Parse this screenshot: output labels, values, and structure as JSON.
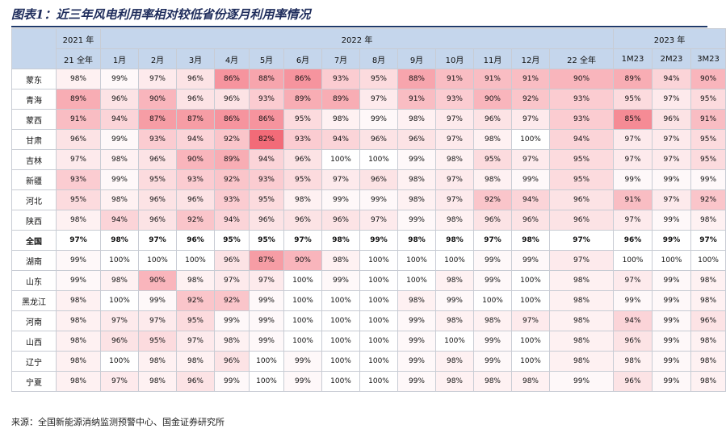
{
  "title": "图表1：近三年风电利用率相对较低省份逐月利用率情况",
  "header": {
    "years": [
      {
        "label": "2021 年",
        "span": 1
      },
      {
        "label": "2022 年",
        "span": 13
      },
      {
        "label": "2023 年",
        "span": 3
      }
    ],
    "columns": [
      "21 全年",
      "1月",
      "2月",
      "3月",
      "4月",
      "5月",
      "6月",
      "7月",
      "8月",
      "9月",
      "10月",
      "11月",
      "12月",
      "22 全年",
      "1M23",
      "2M23",
      "3M23"
    ]
  },
  "rows": [
    {
      "region": "蒙东",
      "values": [
        "98%",
        "99%",
        "97%",
        "96%",
        "86%",
        "88%",
        "86%",
        "93%",
        "95%",
        "88%",
        "91%",
        "91%",
        "91%",
        "90%",
        "89%",
        "94%",
        "90%"
      ]
    },
    {
      "region": "青海",
      "values": [
        "89%",
        "96%",
        "90%",
        "96%",
        "96%",
        "93%",
        "89%",
        "89%",
        "97%",
        "91%",
        "93%",
        "90%",
        "92%",
        "93%",
        "95%",
        "97%",
        "95%"
      ]
    },
    {
      "region": "蒙西",
      "values": [
        "91%",
        "94%",
        "87%",
        "87%",
        "86%",
        "86%",
        "95%",
        "98%",
        "99%",
        "98%",
        "97%",
        "96%",
        "97%",
        "93%",
        "85%",
        "96%",
        "91%"
      ]
    },
    {
      "region": "甘肃",
      "values": [
        "96%",
        "99%",
        "93%",
        "94%",
        "92%",
        "82%",
        "93%",
        "94%",
        "96%",
        "96%",
        "97%",
        "98%",
        "100%",
        "94%",
        "97%",
        "97%",
        "95%"
      ]
    },
    {
      "region": "吉林",
      "values": [
        "97%",
        "98%",
        "96%",
        "90%",
        "89%",
        "94%",
        "96%",
        "100%",
        "100%",
        "99%",
        "98%",
        "95%",
        "97%",
        "95%",
        "97%",
        "97%",
        "95%"
      ]
    },
    {
      "region": "新疆",
      "values": [
        "93%",
        "99%",
        "95%",
        "93%",
        "92%",
        "93%",
        "95%",
        "97%",
        "96%",
        "98%",
        "97%",
        "98%",
        "99%",
        "95%",
        "99%",
        "99%",
        "99%"
      ]
    },
    {
      "region": "河北",
      "values": [
        "95%",
        "98%",
        "96%",
        "96%",
        "93%",
        "95%",
        "98%",
        "99%",
        "99%",
        "98%",
        "97%",
        "92%",
        "94%",
        "96%",
        "91%",
        "97%",
        "92%"
      ]
    },
    {
      "region": "陕西",
      "values": [
        "98%",
        "94%",
        "96%",
        "92%",
        "94%",
        "96%",
        "96%",
        "96%",
        "97%",
        "99%",
        "98%",
        "96%",
        "96%",
        "96%",
        "97%",
        "99%",
        "98%"
      ]
    },
    {
      "region": "全国",
      "bold": true,
      "values": [
        "97%",
        "98%",
        "97%",
        "96%",
        "95%",
        "95%",
        "97%",
        "98%",
        "99%",
        "98%",
        "98%",
        "97%",
        "98%",
        "97%",
        "96%",
        "99%",
        "97%"
      ]
    },
    {
      "region": "湖南",
      "values": [
        "99%",
        "100%",
        "100%",
        "100%",
        "96%",
        "87%",
        "90%",
        "98%",
        "100%",
        "100%",
        "100%",
        "99%",
        "99%",
        "97%",
        "100%",
        "100%",
        "100%"
      ]
    },
    {
      "region": "山东",
      "values": [
        "99%",
        "98%",
        "90%",
        "98%",
        "97%",
        "97%",
        "100%",
        "99%",
        "100%",
        "100%",
        "98%",
        "99%",
        "100%",
        "98%",
        "97%",
        "99%",
        "98%"
      ]
    },
    {
      "region": "黑龙江",
      "values": [
        "98%",
        "100%",
        "99%",
        "92%",
        "92%",
        "99%",
        "100%",
        "100%",
        "100%",
        "98%",
        "99%",
        "100%",
        "100%",
        "98%",
        "99%",
        "99%",
        "98%"
      ]
    },
    {
      "region": "河南",
      "values": [
        "98%",
        "97%",
        "97%",
        "95%",
        "99%",
        "99%",
        "100%",
        "100%",
        "100%",
        "99%",
        "98%",
        "98%",
        "97%",
        "98%",
        "94%",
        "99%",
        "96%"
      ]
    },
    {
      "region": "山西",
      "values": [
        "98%",
        "96%",
        "95%",
        "97%",
        "98%",
        "99%",
        "100%",
        "100%",
        "100%",
        "99%",
        "100%",
        "99%",
        "100%",
        "98%",
        "96%",
        "99%",
        "98%"
      ]
    },
    {
      "region": "辽宁",
      "values": [
        "98%",
        "100%",
        "98%",
        "98%",
        "96%",
        "100%",
        "99%",
        "100%",
        "100%",
        "99%",
        "98%",
        "99%",
        "100%",
        "98%",
        "98%",
        "99%",
        "98%"
      ]
    },
    {
      "region": "宁夏",
      "values": [
        "98%",
        "97%",
        "98%",
        "96%",
        "99%",
        "100%",
        "99%",
        "100%",
        "100%",
        "99%",
        "98%",
        "98%",
        "98%",
        "99%",
        "96%",
        "99%",
        "98%"
      ]
    }
  ],
  "source": "来源：全国新能源消纳监测预警中心、国金证券研究所",
  "colors": {
    "header_bg": "#c5d6ec",
    "heat_low": "#f26b78",
    "heat_high": "#ffffff",
    "title": "#1f2d5c",
    "rule": "#1f3a6b"
  }
}
